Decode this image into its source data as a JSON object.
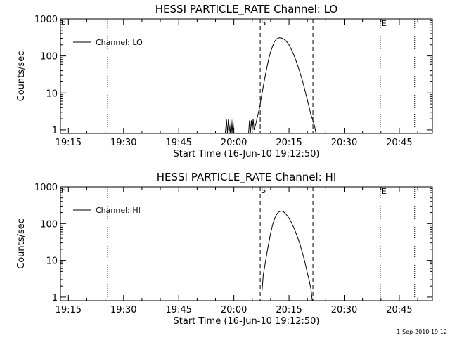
{
  "footer_timestamp": "1-Sep-2010 19:12",
  "chart_data": [
    {
      "type": "line",
      "title": "HESSI PARTICLE_RATE Channel: LO",
      "xlabel": "Start Time (16-Jun-10 19:12:50)",
      "ylabel": "Counts/sec",
      "y_scale": "log",
      "ylim": [
        0.8,
        1000
      ],
      "xlim": [
        "19:12:50",
        "20:54:00"
      ],
      "grid": false,
      "legend": {
        "position": "top-left",
        "entries": [
          "Channel: LO"
        ]
      },
      "x_tick_labels": [
        "19:15",
        "19:30",
        "19:45",
        "20:00",
        "20:15",
        "20:30",
        "20:45"
      ],
      "y_tick_labels": [
        "1",
        "10",
        "100",
        "1000"
      ],
      "y_tick_values": [
        1,
        10,
        100,
        1000
      ],
      "dashed_markers": [
        {
          "time": "20:07:10",
          "label": "S"
        },
        {
          "time": "20:21:30",
          "label": ""
        }
      ],
      "dotted_markers": [
        {
          "time": "19:25:40",
          "label": ""
        },
        {
          "time": "20:39:50",
          "label": "E"
        },
        {
          "time": "20:49:10",
          "label": ""
        }
      ],
      "corner_label": "E",
      "series": [
        {
          "name": "Channel: LO",
          "x": [
            "19:57:40",
            "19:58:00",
            "19:58:15",
            "19:58:30",
            "19:59:00",
            "19:59:15",
            "19:59:30",
            "19:59:45",
            "20:00:00",
            "20:00:15",
            "20:04:00",
            "20:04:15",
            "20:04:30",
            "20:04:45",
            "20:05:00",
            "20:05:15",
            "20:05:30",
            "20:06:00",
            "20:06:30",
            "20:07:00",
            "20:07:30",
            "20:08:00",
            "20:08:30",
            "20:09:00",
            "20:09:30",
            "20:10:00",
            "20:10:30",
            "20:11:00",
            "20:11:30",
            "20:12:00",
            "20:12:30",
            "20:13:00",
            "20:13:30",
            "20:14:00",
            "20:14:30",
            "20:15:00",
            "20:15:30",
            "20:16:00",
            "20:16:30",
            "20:17:00",
            "20:17:30",
            "20:18:00",
            "20:18:30",
            "20:19:00",
            "20:19:30",
            "20:20:00",
            "20:20:30",
            "20:21:00",
            "20:21:30",
            "20:22:00",
            "20:22:20"
          ],
          "y": [
            0.8,
            1.9,
            0.8,
            1.9,
            0.8,
            1.9,
            0.8,
            1.9,
            0.8,
            0.8,
            0.8,
            1.8,
            0.8,
            1.8,
            1.0,
            2.0,
            1.0,
            1.5,
            2.5,
            4.0,
            8,
            15,
            28,
            50,
            85,
            130,
            180,
            240,
            280,
            305,
            310,
            305,
            290,
            265,
            235,
            200,
            160,
            125,
            95,
            70,
            50,
            35,
            24,
            16,
            10,
            6.5,
            4.0,
            2.5,
            1.8,
            1.2,
            0.8
          ]
        }
      ]
    },
    {
      "type": "line",
      "title": "HESSI PARTICLE_RATE Channel: HI",
      "xlabel": "Start Time (16-Jun-10 19:12:50)",
      "ylabel": "Counts/sec",
      "y_scale": "log",
      "ylim": [
        0.8,
        1000
      ],
      "xlim": [
        "19:12:50",
        "20:54:00"
      ],
      "grid": false,
      "legend": {
        "position": "top-left",
        "entries": [
          "Channel: HI"
        ]
      },
      "x_tick_labels": [
        "19:15",
        "19:30",
        "19:45",
        "20:00",
        "20:15",
        "20:30",
        "20:45"
      ],
      "y_tick_labels": [
        "1",
        "10",
        "100",
        "1000"
      ],
      "y_tick_values": [
        1,
        10,
        100,
        1000
      ],
      "dashed_markers": [
        {
          "time": "20:07:10",
          "label": "S"
        },
        {
          "time": "20:21:30",
          "label": ""
        }
      ],
      "dotted_markers": [
        {
          "time": "19:25:40",
          "label": ""
        },
        {
          "time": "20:39:50",
          "label": "E"
        },
        {
          "time": "20:49:10",
          "label": ""
        }
      ],
      "corner_label": "E",
      "series": [
        {
          "name": "Channel: HI",
          "x": [
            "20:07:40",
            "20:08:00",
            "20:08:30",
            "20:09:00",
            "20:09:30",
            "20:10:00",
            "20:10:30",
            "20:11:00",
            "20:11:30",
            "20:12:00",
            "20:12:30",
            "20:13:00",
            "20:13:30",
            "20:14:00",
            "20:14:30",
            "20:15:00",
            "20:15:30",
            "20:16:00",
            "20:16:30",
            "20:17:00",
            "20:17:30",
            "20:18:00",
            "20:18:30",
            "20:19:00",
            "20:19:30",
            "20:20:00",
            "20:20:30",
            "20:21:00",
            "20:21:20"
          ],
          "y": [
            1.5,
            4.0,
            8,
            16,
            30,
            55,
            90,
            130,
            170,
            200,
            215,
            220,
            210,
            190,
            165,
            140,
            115,
            90,
            70,
            52,
            38,
            27,
            18,
            12,
            7.5,
            4.5,
            2.8,
            1.6,
            0.8
          ]
        }
      ]
    }
  ]
}
